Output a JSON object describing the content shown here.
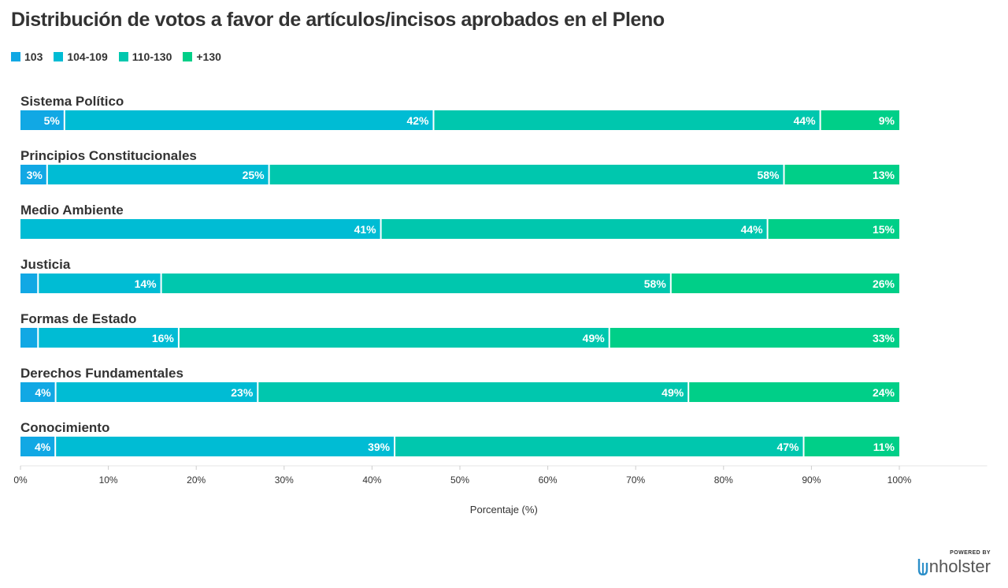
{
  "chart_data": {
    "type": "bar",
    "orientation": "horizontal",
    "stacked": true,
    "title": "Distribución de votos a favor de artículos/incisos aprobados en el Pleno",
    "xlabel": "Porcentaje (%)",
    "ylabel": "",
    "xlim": [
      0,
      110
    ],
    "x_ticks": [
      "0%",
      "10%",
      "20%",
      "30%",
      "40%",
      "50%",
      "60%",
      "70%",
      "80%",
      "90%",
      "100%"
    ],
    "legend_position": "top-left",
    "categories": [
      "Sistema Político",
      "Principios Constitucionales",
      "Medio Ambiente",
      "Justicia",
      "Formas de Estado",
      "Derechos Fundamentales",
      "Conocimiento"
    ],
    "series": [
      {
        "name": "103",
        "color": "#11a8e4",
        "values": [
          5,
          3,
          0,
          2,
          2,
          4,
          4
        ],
        "labels": [
          "5%",
          "3%",
          "",
          "",
          "",
          "4%",
          "4%"
        ]
      },
      {
        "name": "104-109",
        "color": "#00bcd4",
        "values": [
          42,
          25,
          41,
          14,
          16,
          23,
          39
        ],
        "labels": [
          "42%",
          "25%",
          "41%",
          "14%",
          "16%",
          "23%",
          "39%"
        ]
      },
      {
        "name": "110-130",
        "color": "#00c7ae",
        "values": [
          44,
          58,
          44,
          58,
          49,
          49,
          47
        ],
        "labels": [
          "44%",
          "58%",
          "44%",
          "58%",
          "49%",
          "49%",
          "47%"
        ]
      },
      {
        "name": "+130",
        "color": "#00cf88",
        "values": [
          9,
          13,
          15,
          26,
          33,
          24,
          11
        ],
        "labels": [
          "9%",
          "13%",
          "15%",
          "26%",
          "33%",
          "24%",
          "11%"
        ]
      }
    ]
  },
  "brand": {
    "powered": "POWERED BY",
    "name": "nholster"
  }
}
